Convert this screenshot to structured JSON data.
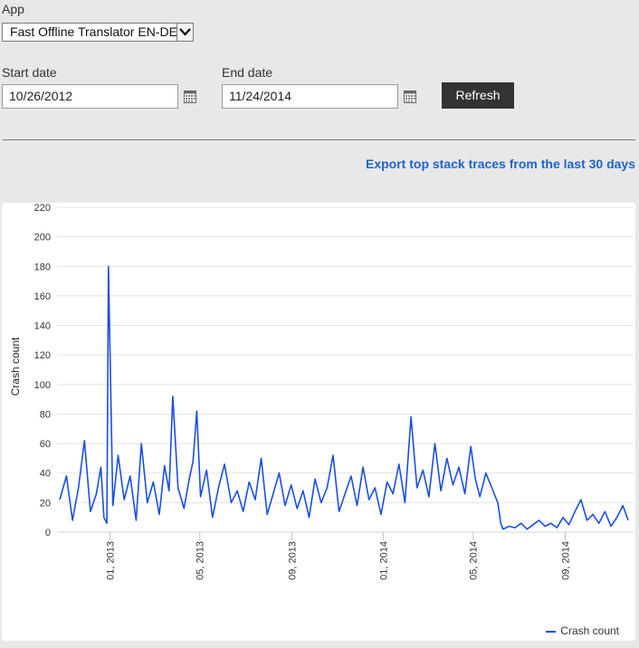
{
  "app": {
    "label": "App",
    "selected": "Fast Offline Translator EN-DE"
  },
  "start_date": {
    "label": "Start date",
    "value": "10/26/2012"
  },
  "end_date": {
    "label": "End date",
    "value": "11/24/2014"
  },
  "refresh_label": "Refresh",
  "export_link": "Export top stack traces from the last 30 days",
  "colors": {
    "series": "#1a4fe0",
    "button": "#333333",
    "link": "#1e64c8"
  },
  "chart_data": {
    "type": "line",
    "ylabel": "Crash count",
    "ylim": [
      0,
      220
    ],
    "yticks": [
      0,
      20,
      40,
      60,
      80,
      100,
      120,
      140,
      160,
      180,
      200,
      220
    ],
    "xticks": [
      "01, 2013",
      "05, 2013",
      "09, 2013",
      "01, 2014",
      "05, 2014",
      "09, 2014"
    ],
    "xrange": [
      "2012-10-26",
      "2014-11-24"
    ],
    "grid": "horizontal",
    "legend": "bottom-right",
    "series": [
      {
        "name": "Crash count",
        "x": [
          "2012-10-26",
          "2012-11-04",
          "2012-11-12",
          "2012-11-20",
          "2012-11-28",
          "2012-12-06",
          "2012-12-14",
          "2012-12-20",
          "2012-12-24",
          "2012-12-28",
          "2012-12-30",
          "2013-01-05",
          "2013-01-12",
          "2013-01-20",
          "2013-01-28",
          "2013-02-05",
          "2013-02-12",
          "2013-02-20",
          "2013-02-28",
          "2013-03-08",
          "2013-03-15",
          "2013-03-21",
          "2013-03-26",
          "2013-04-02",
          "2013-04-10",
          "2013-04-17",
          "2013-04-22",
          "2013-04-27",
          "2013-05-02",
          "2013-05-10",
          "2013-05-18",
          "2013-05-26",
          "2013-06-03",
          "2013-06-12",
          "2013-06-20",
          "2013-06-28",
          "2013-07-06",
          "2013-07-14",
          "2013-07-22",
          "2013-07-30",
          "2013-08-07",
          "2013-08-15",
          "2013-08-23",
          "2013-08-31",
          "2013-09-08",
          "2013-09-16",
          "2013-09-24",
          "2013-10-02",
          "2013-10-10",
          "2013-10-18",
          "2013-10-26",
          "2013-11-03",
          "2013-11-11",
          "2013-11-19",
          "2013-11-27",
          "2013-12-05",
          "2013-12-13",
          "2013-12-21",
          "2013-12-29",
          "2014-01-06",
          "2014-01-14",
          "2014-01-22",
          "2014-01-30",
          "2014-02-07",
          "2014-02-15",
          "2014-02-23",
          "2014-03-03",
          "2014-03-11",
          "2014-03-19",
          "2014-03-27",
          "2014-04-04",
          "2014-04-12",
          "2014-04-20",
          "2014-04-28",
          "2014-05-04",
          "2014-05-10",
          "2014-05-18",
          "2014-05-26",
          "2014-06-03",
          "2014-06-07",
          "2014-06-10",
          "2014-06-18",
          "2014-06-26",
          "2014-07-04",
          "2014-07-12",
          "2014-07-20",
          "2014-07-28",
          "2014-08-05",
          "2014-08-13",
          "2014-08-21",
          "2014-08-29",
          "2014-09-06",
          "2014-09-14",
          "2014-09-22",
          "2014-09-30",
          "2014-10-08",
          "2014-10-16",
          "2014-10-24",
          "2014-11-01",
          "2014-11-09",
          "2014-11-17",
          "2014-11-24"
        ],
        "values": [
          22,
          38,
          8,
          30,
          62,
          14,
          26,
          44,
          10,
          6,
          180,
          18,
          52,
          22,
          38,
          8,
          60,
          20,
          34,
          12,
          45,
          28,
          92,
          30,
          16,
          36,
          48,
          82,
          24,
          42,
          10,
          30,
          46,
          20,
          28,
          14,
          34,
          22,
          50,
          12,
          26,
          40,
          18,
          32,
          16,
          28,
          10,
          36,
          20,
          30,
          52,
          14,
          26,
          38,
          18,
          44,
          22,
          30,
          12,
          34,
          26,
          46,
          20,
          78,
          30,
          42,
          24,
          60,
          28,
          50,
          32,
          44,
          26,
          58,
          36,
          24,
          40,
          30,
          20,
          6,
          2,
          4,
          3,
          6,
          2,
          5,
          8,
          4,
          6,
          3,
          10,
          5,
          14,
          22,
          8,
          12,
          6,
          14,
          4,
          10,
          18,
          8
        ]
      }
    ]
  }
}
